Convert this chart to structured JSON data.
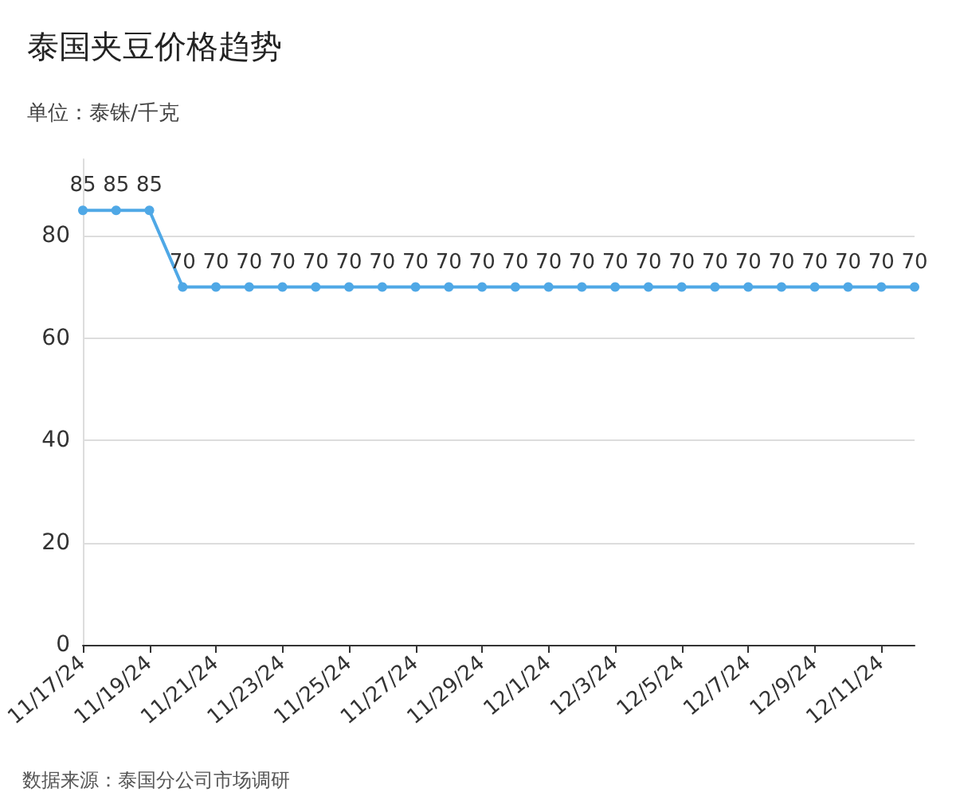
{
  "chart_data": {
    "type": "line",
    "title": "泰国夹豆价格趋势",
    "subtitle": "单位：泰铢/千克",
    "annotations": [
      "数据来源：泰国分公司市场调研"
    ],
    "categories": [
      "11/17/24",
      null,
      "11/19/24",
      null,
      "11/21/24",
      null,
      "11/23/24",
      null,
      "11/25/24",
      null,
      "11/27/24",
      null,
      "11/29/24",
      null,
      "12/1/24",
      null,
      "12/3/24",
      null,
      "12/5/24",
      null,
      "12/7/24",
      null,
      "12/9/24",
      null,
      "12/11/24",
      null
    ],
    "series": [
      {
        "color": "#4fa8e6",
        "values": [
          85,
          85,
          85,
          70,
          70,
          70,
          70,
          70,
          70,
          70,
          70,
          70,
          70,
          70,
          70,
          70,
          70,
          70,
          70,
          70,
          70,
          70,
          70,
          70,
          70,
          70
        ]
      }
    ],
    "ylim": [
      0,
      95
    ],
    "yticks": [
      0,
      20,
      40,
      60,
      80
    ],
    "grid": "y",
    "data_labels": true,
    "marker": "circle",
    "line_style": "solid"
  }
}
